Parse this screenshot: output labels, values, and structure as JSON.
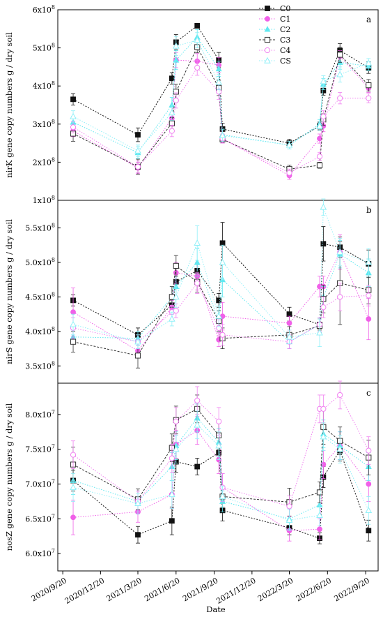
{
  "chart_data": {
    "type": "line",
    "xlabel": "Date",
    "x_ticks": [
      "2020/9/20",
      "2020/12/20",
      "2021/3/20",
      "2021/6/20",
      "2021/9/20",
      "2021/12/20",
      "2022/3/20",
      "2022/6/20",
      "2022/9/20"
    ],
    "x": [
      "2020/10/15",
      "2021/3/20",
      "2021/6/10",
      "2021/6/20",
      "2021/8/10",
      "2021/10/1",
      "2021/10/10",
      "2022/3/20",
      "2022/6/1",
      "2022/6/10",
      "2022/7/20",
      "2022/9/27"
    ],
    "legend": [
      "C0",
      "C1",
      "C2",
      "C3",
      "C4",
      "CS"
    ],
    "series_colors": {
      "C0": "#111111",
      "C1": "#f060e8",
      "C2": "#60e8f0",
      "C3": "#333333",
      "C4": "#f080f0",
      "CS": "#90f0f8"
    },
    "panels": [
      {
        "letter": "a",
        "ylabel": "nirK gene copy numbers g / dry soil",
        "ylim": [
          100000000.0,
          600000000.0
        ],
        "y_ticks": [
          {
            "v": 100000000.0,
            "m": "1x10",
            "e": "8"
          },
          {
            "v": 200000000.0,
            "m": "2x10",
            "e": "8"
          },
          {
            "v": 300000000.0,
            "m": "3x10",
            "e": "8"
          },
          {
            "v": 400000000.0,
            "m": "4x10",
            "e": "8"
          },
          {
            "v": 500000000.0,
            "m": "5x10",
            "e": "8"
          },
          {
            "v": 600000000.0,
            "m": "6x10",
            "e": "8"
          }
        ],
        "series": [
          {
            "name": "C0",
            "values": [
              365000000.0,
              272000000.0,
              420000000.0,
              515000000.0,
              558000000.0,
              468000000.0,
              287000000.0,
              250000000.0,
              295000000.0,
              388000000.0,
              493000000.0,
              448000000.0
            ],
            "err": [
              15000000.0,
              18000000.0,
              15000000.0,
              20000000.0,
              5000000.0,
              20000000.0,
              15000000.0,
              10000000.0,
              10000000.0,
              12000000.0,
              18000000.0,
              15000000.0
            ]
          },
          {
            "name": "C1",
            "values": [
              282000000.0,
              185000000.0,
              315000000.0,
              468000000.0,
              465000000.0,
              455000000.0,
              262000000.0,
              165000000.0,
              262000000.0,
              295000000.0,
              478000000.0,
              395000000.0
            ],
            "err": [
              15000000.0,
              15000000.0,
              15000000.0,
              20000000.0,
              20000000.0,
              20000000.0,
              10000000.0,
              10000000.0,
              12000000.0,
              15000000.0,
              15000000.0,
              12000000.0
            ]
          },
          {
            "name": "C2",
            "values": [
              305000000.0,
              225000000.0,
              350000000.0,
              468000000.0,
              528000000.0,
              445000000.0,
              272000000.0,
              245000000.0,
              300000000.0,
              405000000.0,
              462000000.0,
              452000000.0
            ],
            "err": [
              15000000.0,
              15000000.0,
              20000000.0,
              25000000.0,
              20000000.0,
              20000000.0,
              15000000.0,
              10000000.0,
              12000000.0,
              15000000.0,
              18000000.0,
              12000000.0
            ]
          },
          {
            "name": "C3",
            "values": [
              275000000.0,
              188000000.0,
              302000000.0,
              385000000.0,
              502000000.0,
              395000000.0,
              260000000.0,
              182000000.0,
              192000000.0,
              312000000.0,
              482000000.0,
              402000000.0
            ],
            "err": [
              20000000.0,
              20000000.0,
              15000000.0,
              20000000.0,
              15000000.0,
              20000000.0,
              10000000.0,
              10000000.0,
              8000000.0,
              15000000.0,
              20000000.0,
              15000000.0
            ]
          },
          {
            "name": "C4",
            "values": [
              292000000.0,
              188000000.0,
              282000000.0,
              362000000.0,
              448000000.0,
              385000000.0,
              262000000.0,
              172000000.0,
              215000000.0,
              320000000.0,
              368000000.0,
              368000000.0
            ],
            "err": [
              15000000.0,
              15000000.0,
              15000000.0,
              20000000.0,
              20000000.0,
              20000000.0,
              12000000.0,
              10000000.0,
              10000000.0,
              15000000.0,
              15000000.0,
              12000000.0
            ]
          },
          {
            "name": "CS",
            "values": [
              320000000.0,
              230000000.0,
              330000000.0,
              505000000.0,
              520000000.0,
              410000000.0,
              270000000.0,
              245000000.0,
              295000000.0,
              412000000.0,
              430000000.0,
              460000000.0
            ],
            "err": [
              15000000.0,
              15000000.0,
              20000000.0,
              25000000.0,
              20000000.0,
              20000000.0,
              15000000.0,
              10000000.0,
              12000000.0,
              15000000.0,
              20000000.0,
              12000000.0
            ]
          }
        ]
      },
      {
        "letter": "b",
        "ylabel": "nirS gene copy numbers g / dry soil",
        "ylim": [
          325000000.0,
          590000000.0
        ],
        "y_ticks": [
          {
            "v": 350000000.0,
            "m": "3.5x10",
            "e": "8"
          },
          {
            "v": 400000000.0,
            "m": "4.0x10",
            "e": "8"
          },
          {
            "v": 450000000.0,
            "m": "4.5x10",
            "e": "8"
          },
          {
            "v": 500000000.0,
            "m": "5.0x10",
            "e": "8"
          },
          {
            "v": 550000000.0,
            "m": "5.5x10",
            "e": "8"
          }
        ],
        "series": [
          {
            "name": "C0",
            "values": [
              445000000.0,
              395000000.0,
              438000000.0,
              472000000.0,
              488000000.0,
              445000000.0,
              528000000.0,
              425000000.0,
              410000000.0,
              527000000.0,
              522000000.0,
              498000000.0
            ],
            "err": [
              8000000.0,
              10000000.0,
              8000000.0,
              10000000.0,
              10000000.0,
              10000000.0,
              30000000.0,
              10000000.0,
              8000000.0,
              25000000.0,
              15000000.0,
              20000000.0
            ]
          },
          {
            "name": "C1",
            "values": [
              428000000.0,
              372000000.0,
              435000000.0,
              485000000.0,
              480000000.0,
              388000000.0,
              422000000.0,
              412000000.0,
              465000000.0,
              465000000.0,
              515000000.0,
              418000000.0
            ],
            "err": [
              35000000.0,
              8000000.0,
              10000000.0,
              15000000.0,
              20000000.0,
              10000000.0,
              20000000.0,
              10000000.0,
              15000000.0,
              15000000.0,
              25000000.0,
              30000000.0
            ]
          },
          {
            "name": "C2",
            "values": [
              392000000.0,
              390000000.0,
              450000000.0,
              465000000.0,
              500000000.0,
              415000000.0,
              475000000.0,
              385000000.0,
              410000000.0,
              450000000.0,
              512000000.0,
              485000000.0
            ],
            "err": [
              10000000.0,
              10000000.0,
              15000000.0,
              15000000.0,
              20000000.0,
              15000000.0,
              25000000.0,
              10000000.0,
              10000000.0,
              15000000.0,
              20000000.0,
              20000000.0
            ]
          },
          {
            "name": "C3",
            "values": [
              385000000.0,
              365000000.0,
              450000000.0,
              495000000.0,
              472000000.0,
              415000000.0,
              390000000.0,
              395000000.0,
              408000000.0,
              447000000.0,
              470000000.0,
              460000000.0
            ],
            "err": [
              15000000.0,
              18000000.0,
              15000000.0,
              15000000.0,
              15000000.0,
              15000000.0,
              15000000.0,
              12000000.0,
              10000000.0,
              20000000.0,
              60000000.0,
              20000000.0
            ]
          },
          {
            "name": "C4",
            "values": [
              405000000.0,
              385000000.0,
              428000000.0,
              430000000.0,
              470000000.0,
              405000000.0,
              395000000.0,
              385000000.0,
              410000000.0,
              435000000.0,
              450000000.0,
              452000000.0
            ],
            "err": [
              15000000.0,
              10000000.0,
              10000000.0,
              10000000.0,
              15000000.0,
              12000000.0,
              15000000.0,
              10000000.0,
              10000000.0,
              15000000.0,
              20000000.0,
              15000000.0
            ]
          },
          {
            "name": "CS",
            "values": [
              410000000.0,
              385000000.0,
              418000000.0,
              450000000.0,
              528000000.0,
              422000000.0,
              500000000.0,
              392000000.0,
              398000000.0,
              580000000.0,
              515000000.0,
              500000000.0
            ],
            "err": [
              15000000.0,
              10000000.0,
              10000000.0,
              15000000.0,
              25000000.0,
              15000000.0,
              25000000.0,
              10000000.0,
              20000000.0,
              12000000.0,
              20000000.0,
              20000000.0
            ]
          }
        ]
      },
      {
        "letter": "c",
        "ylabel": "nosZ gene copy numbers g / dry soil",
        "ylim": [
          57500000.0,
          84500000.0
        ],
        "y_ticks": [
          {
            "v": 60000000.0,
            "m": "6.0x10",
            "e": "7"
          },
          {
            "v": 65000000.0,
            "m": "6.5x10",
            "e": "7"
          },
          {
            "v": 70000000.0,
            "m": "7.0x10",
            "e": "7"
          },
          {
            "v": 75000000.0,
            "m": "7.5x10",
            "e": "7"
          },
          {
            "v": 80000000.0,
            "m": "8.0x10",
            "e": "7"
          }
        ],
        "series": [
          {
            "name": "C0",
            "values": [
              70500000.0,
              62700000.0,
              64700000.0,
              73200000.0,
              72500000.0,
              74500000.0,
              66200000.0,
              63700000.0,
              62200000.0,
              71000000.0,
              74800000.0,
              63300000.0
            ],
            "err": [
              1500000.0,
              1200000.0,
              2000000.0,
              1500000.0,
              1200000.0,
              1200000.0,
              1500000.0,
              1000000.0,
              800000.0,
              1500000.0,
              1500000.0,
              1500000.0
            ]
          },
          {
            "name": "C1",
            "values": [
              65200000.0,
              66000000.0,
              68500000.0,
              75700000.0,
              77700000.0,
              73500000.0,
              69500000.0,
              63300000.0,
              63500000.0,
              72800000.0,
              75500000.0,
              70000000.0
            ],
            "err": [
              2500000.0,
              1500000.0,
              2000000.0,
              2000000.0,
              2000000.0,
              2000000.0,
              2000000.0,
              1500000.0,
              1500000.0,
              2000000.0,
              2000000.0,
              2500000.0
            ]
          },
          {
            "name": "C2",
            "values": [
              70500000.0,
              67500000.0,
              72500000.0,
              75500000.0,
              79500000.0,
              76000000.0,
              67500000.0,
              65000000.0,
              67000000.0,
              77200000.0,
              75500000.0,
              72500000.0
            ],
            "err": [
              2000000.0,
              1500000.0,
              2000000.0,
              2000000.0,
              2000000.0,
              2000000.0,
              1500000.0,
              1500000.0,
              1500000.0,
              2000000.0,
              2000000.0,
              2000000.0
            ]
          },
          {
            "name": "C3",
            "values": [
              72800000.0,
              67800000.0,
              75200000.0,
              79200000.0,
              80800000.0,
              77000000.0,
              68200000.0,
              67400000.0,
              68800000.0,
              78200000.0,
              76200000.0,
              73800000.0
            ],
            "err": [
              2500000.0,
              1500000.0,
              2000000.0,
              2000000.0,
              2000000.0,
              2000000.0,
              1500000.0,
              2000000.0,
              1500000.0,
              2500000.0,
              2000000.0,
              2500000.0
            ]
          },
          {
            "name": "C4",
            "values": [
              74200000.0,
              67500000.0,
              73700000.0,
              79000000.0,
              82000000.0,
              79000000.0,
              69500000.0,
              66800000.0,
              80800000.0,
              80800000.0,
              82800000.0,
              74800000.0
            ],
            "err": [
              2000000.0,
              1500000.0,
              2000000.0,
              2000000.0,
              2000000.0,
              2000000.0,
              2000000.0,
              1500000.0,
              2000000.0,
              2000000.0,
              2000000.0,
              2000000.0
            ]
          },
          {
            "name": "CS",
            "values": [
              69500000.0,
              67200000.0,
              68500000.0,
              75000000.0,
              78500000.0,
              75500000.0,
              68200000.0,
              64800000.0,
              65500000.0,
              76800000.0,
              75000000.0,
              66200000.0
            ],
            "err": [
              2000000.0,
              1500000.0,
              2000000.0,
              2000000.0,
              2000000.0,
              2000000.0,
              1500000.0,
              1500000.0,
              1500000.0,
              2000000.0,
              2000000.0,
              2000000.0
            ]
          }
        ]
      }
    ]
  }
}
